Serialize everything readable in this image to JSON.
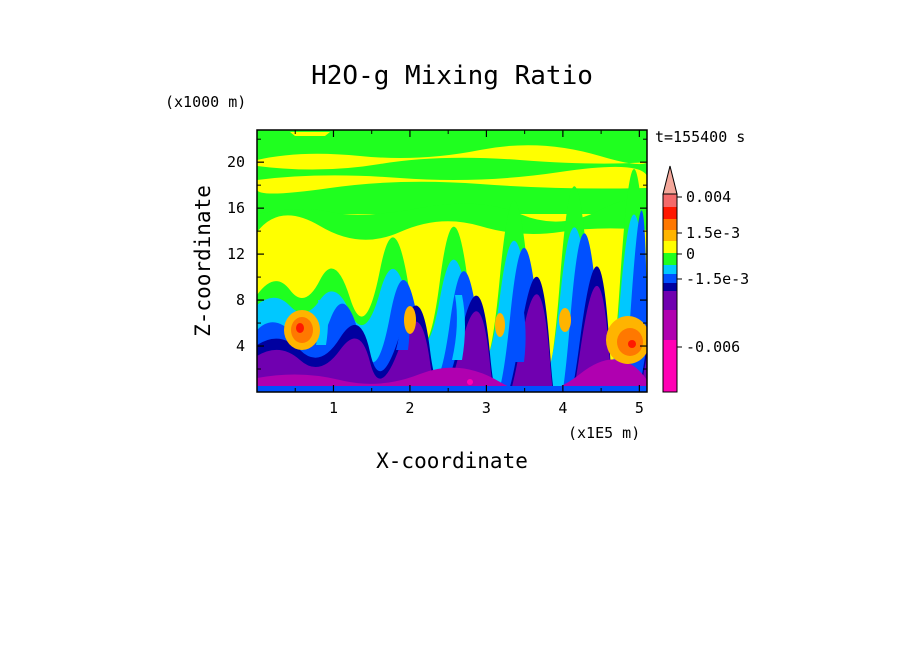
{
  "chart_data": {
    "type": "heatmap",
    "title": "H2O-g Mixing Ratio",
    "xlabel": "X-coordinate",
    "ylabel": "Z-coordinate",
    "x_unit": "(x1E5 m)",
    "y_unit": "(x1000 m)",
    "time_label": "t=155400 s",
    "x_ticks": [
      "1",
      "2",
      "3",
      "4",
      "5"
    ],
    "x_tick_values": [
      1,
      2,
      3,
      4,
      5
    ],
    "y_ticks": [
      "4",
      "8",
      "12",
      "16",
      "20"
    ],
    "y_tick_values": [
      4,
      8,
      12,
      16,
      20
    ],
    "xlim": [
      0.0,
      5.1
    ],
    "ylim": [
      0.0,
      22.8
    ],
    "colorbar": {
      "labels": [
        "0.004",
        "1.5e-3",
        "0",
        "-1.5e-3",
        "-0.006"
      ],
      "label_values": [
        0.004,
        0.0015,
        0,
        -0.0015,
        -0.006
      ],
      "levels": [
        {
          "color": "#f4a79a",
          "max": "overflow"
        },
        {
          "color": "#f46a6a",
          "value": 0.004
        },
        {
          "color": "#ff1800",
          "value": 0.0025
        },
        {
          "color": "#ff7800",
          "value": 0.002
        },
        {
          "color": "#ffb400",
          "value": 0.0015
        },
        {
          "color": "#ffff00",
          "value": 0.0005
        },
        {
          "color": "#1fff1f",
          "value": 0
        },
        {
          "color": "#00c8ff",
          "value": -0.0005
        },
        {
          "color": "#0050ff",
          "value": -0.001
        },
        {
          "color": "#0000a0",
          "value": -0.0015
        },
        {
          "color": "#7000b0",
          "value": -0.003
        },
        {
          "color": "#b000b0",
          "value": -0.006
        },
        {
          "color": "#ff00b4",
          "value": -0.008
        }
      ]
    },
    "regions": [
      {
        "z_range": [
          18.5,
          22.8
        ],
        "class": "0 to 0.0005",
        "color": "#1fff1f"
      },
      {
        "z_range": [
          9.5,
          16.0
        ],
        "class": "0.0005 to 0.0015",
        "color": "#ffff00"
      },
      {
        "z_range": [
          6.0,
          9.5
        ],
        "class": "-0.0005 to 0",
        "color": "#00c8ff"
      },
      {
        "z_range": [
          0.5,
          4.5
        ],
        "class": "-0.006 to -0.003",
        "color": "#7000b0"
      },
      {
        "center": [
          0.6,
          5.5
        ],
        "class": "0.002 to 0.0025",
        "color": "#ff7800"
      },
      {
        "center": [
          4.9,
          4.5
        ],
        "class": "0.002 to 0.0025",
        "color": "#ff7800"
      }
    ]
  }
}
